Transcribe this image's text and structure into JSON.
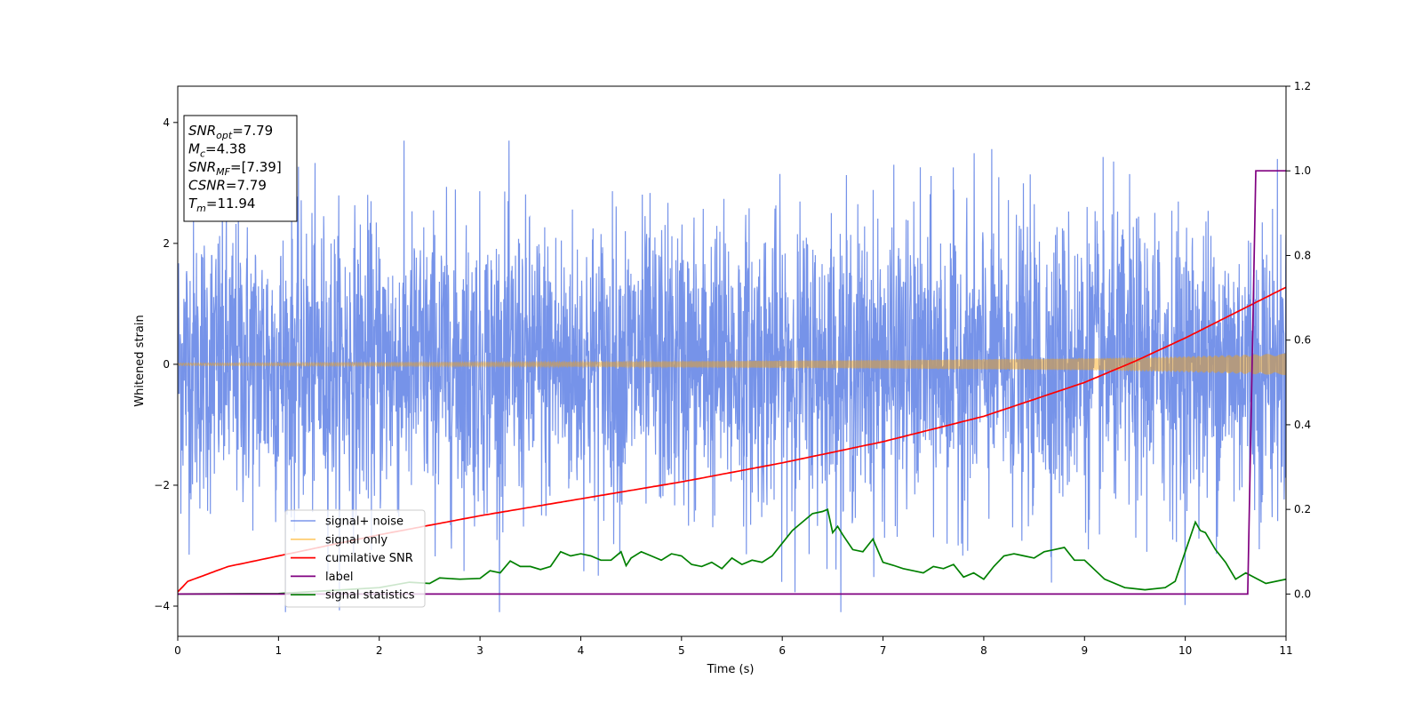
{
  "chart_data": {
    "type": "line",
    "xlabel": "Time (s)",
    "ylabel": "Whitened strain",
    "xlim": [
      0,
      11
    ],
    "ylim": [
      -4.5,
      4.6
    ],
    "y2lim": [
      -0.1,
      1.2
    ],
    "xticks": [
      "0",
      "1",
      "2",
      "3",
      "4",
      "5",
      "6",
      "7",
      "8",
      "9",
      "10",
      "11"
    ],
    "yticks": [
      "4",
      "2",
      "0",
      "−2",
      "−4"
    ],
    "y2ticks": [
      "1.2",
      "1.0",
      "0.8",
      "0.6",
      "0.4",
      "0.2",
      "0.0"
    ],
    "grid": false,
    "legend_position": "lower-left",
    "legend": [
      {
        "label": "signal+ noise",
        "color": "#4169e1"
      },
      {
        "label": "signal only",
        "color": "#ffa500"
      },
      {
        "label": "cumilative SNR",
        "color": "#ff0000"
      },
      {
        "label": "label",
        "color": "#800080"
      },
      {
        "label": "signal statistics",
        "color": "#008000"
      }
    ],
    "annotation": [
      {
        "base": "SNR",
        "sub": "opt",
        "value": "=7.79"
      },
      {
        "base": "M",
        "sub": "c",
        "value": "=4.38"
      },
      {
        "base": "SNR",
        "sub": "MF",
        "value": "=[7.39]"
      },
      {
        "base": "CSNR",
        "sub": "",
        "value": "=7.79"
      },
      {
        "base": "T",
        "sub": "m",
        "value": "=11.94"
      }
    ],
    "series": [
      {
        "name": "signal+ noise",
        "axis": "left",
        "color": "#4169e1",
        "note": "dense whitened noise band, roughly between -2.5 and 2.5 with spikes to about ±3.7",
        "amplitude_envelope": 1.2
      },
      {
        "name": "signal only",
        "axis": "left",
        "color": "#ffa500",
        "amplitude_x": [
          0,
          4,
          7,
          9,
          10,
          11
        ],
        "amplitude_y": [
          0.02,
          0.04,
          0.07,
          0.1,
          0.13,
          0.18
        ]
      },
      {
        "name": "cumilative SNR",
        "axis": "right",
        "x": [
          0,
          0.1,
          0.5,
          1,
          2,
          3,
          4,
          5,
          6,
          7,
          8,
          9,
          9.5,
          10,
          10.5,
          11
        ],
        "y": [
          0.005,
          0.03,
          0.065,
          0.09,
          0.14,
          0.185,
          0.225,
          0.265,
          0.31,
          0.36,
          0.42,
          0.5,
          0.55,
          0.605,
          0.665,
          0.725
        ]
      },
      {
        "name": "label",
        "axis": "right",
        "x": [
          0,
          10.62,
          10.7,
          11
        ],
        "y": [
          0,
          0,
          1,
          1
        ]
      },
      {
        "name": "signal statistics",
        "axis": "right",
        "x": [
          0,
          1,
          2,
          2.3,
          2.5,
          2.6,
          2.8,
          3,
          3.1,
          3.2,
          3.3,
          3.4,
          3.5,
          3.6,
          3.7,
          3.8,
          3.9,
          4.0,
          4.1,
          4.2,
          4.3,
          4.4,
          4.45,
          4.5,
          4.6,
          4.7,
          4.8,
          4.9,
          5.0,
          5.1,
          5.2,
          5.3,
          5.4,
          5.5,
          5.6,
          5.7,
          5.8,
          5.9,
          6.0,
          6.1,
          6.2,
          6.3,
          6.4,
          6.45,
          6.5,
          6.55,
          6.6,
          6.7,
          6.8,
          6.9,
          7.0,
          7.1,
          7.2,
          7.3,
          7.4,
          7.5,
          7.6,
          7.7,
          7.8,
          7.9,
          8.0,
          8.1,
          8.2,
          8.3,
          8.4,
          8.5,
          8.6,
          8.7,
          8.8,
          8.9,
          9.0,
          9.2,
          9.4,
          9.6,
          9.8,
          9.9,
          10.0,
          10.1,
          10.15,
          10.2,
          10.3,
          10.4,
          10.5,
          10.6,
          10.8,
          11.0
        ],
        "y": [
          0.0,
          0.001,
          0.015,
          0.028,
          0.025,
          0.038,
          0.035,
          0.037,
          0.055,
          0.05,
          0.078,
          0.065,
          0.065,
          0.058,
          0.065,
          0.1,
          0.09,
          0.095,
          0.09,
          0.08,
          0.08,
          0.1,
          0.067,
          0.085,
          0.1,
          0.09,
          0.08,
          0.095,
          0.09,
          0.07,
          0.065,
          0.075,
          0.06,
          0.085,
          0.07,
          0.08,
          0.075,
          0.09,
          0.12,
          0.15,
          0.17,
          0.19,
          0.195,
          0.2,
          0.145,
          0.16,
          0.14,
          0.105,
          0.1,
          0.13,
          0.075,
          0.068,
          0.06,
          0.055,
          0.05,
          0.065,
          0.06,
          0.07,
          0.04,
          0.05,
          0.035,
          0.065,
          0.09,
          0.095,
          0.09,
          0.085,
          0.1,
          0.105,
          0.11,
          0.08,
          0.08,
          0.035,
          0.015,
          0.01,
          0.015,
          0.03,
          0.1,
          0.17,
          0.15,
          0.145,
          0.105,
          0.075,
          0.035,
          0.05,
          0.025,
          0.035
        ]
      }
    ]
  }
}
